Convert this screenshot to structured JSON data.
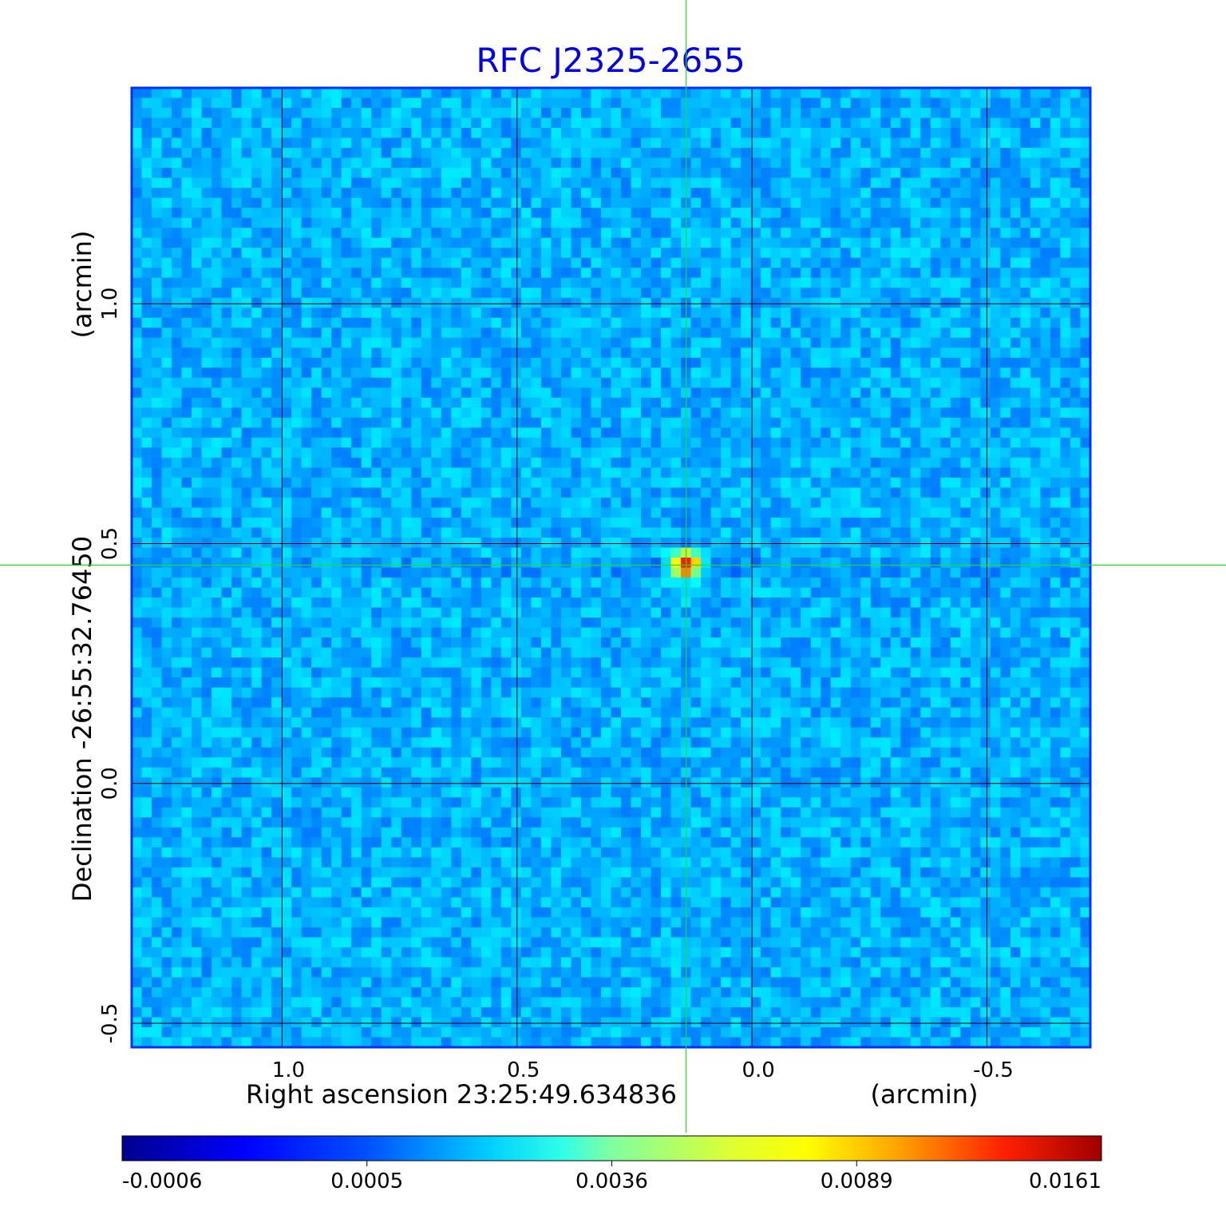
{
  "chart_data": {
    "type": "heatmap",
    "title": "RFC J2325-2655",
    "xlabel": "Right ascension  23:25:49.634836",
    "xunit": "(arcmin)",
    "ylabel": "Declination  -26:55:32.76450",
    "yunit": "(arcmin)",
    "xlim": [
      1.32,
      -0.72
    ],
    "ylim": [
      -0.55,
      1.45
    ],
    "xticks": [
      {
        "value": 1.0,
        "label": "1.0"
      },
      {
        "value": 0.5,
        "label": "0.5"
      },
      {
        "value": 0.0,
        "label": "0.0"
      },
      {
        "value": -0.5,
        "label": "-0.5"
      }
    ],
    "yticks": [
      {
        "value": 1.0,
        "label": "1.0"
      },
      {
        "value": 0.5,
        "label": "0.5"
      },
      {
        "value": 0.0,
        "label": "0.0"
      },
      {
        "value": -0.5,
        "label": "-0.5"
      }
    ],
    "grid": true,
    "crosshair": {
      "x": 0.14,
      "y": 0.455
    },
    "source": {
      "x": 0.14,
      "y": 0.455,
      "peak": 0.0161
    },
    "background_level": 0.0,
    "colorbar": {
      "position": "bottom",
      "ticks": [
        "-0.0006",
        "0.0005",
        "0.0036",
        "0.0089",
        "0.0161"
      ],
      "colormap": "jet"
    },
    "colors": {
      "title": "#0000ee",
      "crosshair": "#22dd22",
      "frame": "#0030ff",
      "grid": "#000000"
    }
  }
}
